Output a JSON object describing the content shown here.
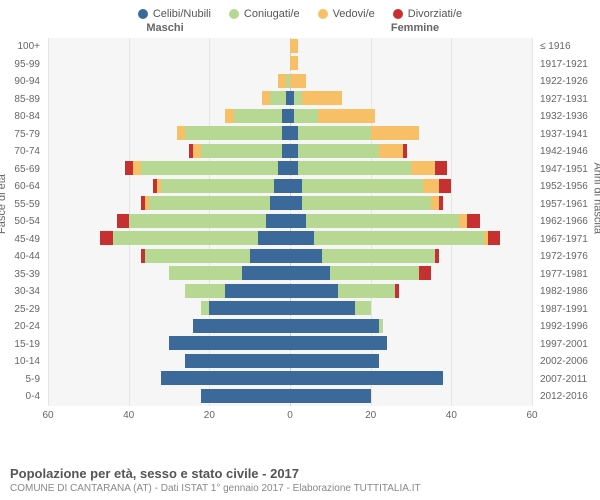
{
  "legend": [
    {
      "label": "Celibi/Nubili",
      "color": "#3b6a9a"
    },
    {
      "label": "Coniugati/e",
      "color": "#b6d893"
    },
    {
      "label": "Vedovi/e",
      "color": "#f7c066"
    },
    {
      "label": "Divorziati/e",
      "color": "#c73030"
    }
  ],
  "gender": {
    "male": "Maschi",
    "female": "Femmine"
  },
  "axes": {
    "left_title": "Fasce di età",
    "right_title": "Anni di nascita",
    "xmax": 60,
    "xticks": [
      60,
      40,
      20,
      0,
      20,
      40,
      60
    ]
  },
  "colors": {
    "celibi": "#3b6a9a",
    "coniugati": "#b6d893",
    "vedovi": "#f7c066",
    "divorziati": "#c73030",
    "plot_bg": "#f6f6f6",
    "grid": "#e5e5e5"
  },
  "rows": [
    {
      "age": "100+",
      "birth": "≤ 1916",
      "m": {
        "c": 0,
        "g": 0,
        "v": 0,
        "d": 0
      },
      "f": {
        "c": 0,
        "g": 0,
        "v": 2,
        "d": 0
      }
    },
    {
      "age": "95-99",
      "birth": "1917-1921",
      "m": {
        "c": 0,
        "g": 0,
        "v": 0,
        "d": 0
      },
      "f": {
        "c": 0,
        "g": 0,
        "v": 2,
        "d": 0
      }
    },
    {
      "age": "90-94",
      "birth": "1922-1926",
      "m": {
        "c": 0,
        "g": 1,
        "v": 2,
        "d": 0
      },
      "f": {
        "c": 0,
        "g": 0,
        "v": 4,
        "d": 0
      }
    },
    {
      "age": "85-89",
      "birth": "1927-1931",
      "m": {
        "c": 1,
        "g": 4,
        "v": 2,
        "d": 0
      },
      "f": {
        "c": 1,
        "g": 2,
        "v": 10,
        "d": 0
      }
    },
    {
      "age": "80-84",
      "birth": "1932-1936",
      "m": {
        "c": 2,
        "g": 12,
        "v": 2,
        "d": 0
      },
      "f": {
        "c": 1,
        "g": 6,
        "v": 14,
        "d": 0
      }
    },
    {
      "age": "75-79",
      "birth": "1937-1941",
      "m": {
        "c": 2,
        "g": 24,
        "v": 2,
        "d": 0
      },
      "f": {
        "c": 2,
        "g": 18,
        "v": 12,
        "d": 0
      }
    },
    {
      "age": "70-74",
      "birth": "1942-1946",
      "m": {
        "c": 2,
        "g": 20,
        "v": 2,
        "d": 1
      },
      "f": {
        "c": 2,
        "g": 20,
        "v": 6,
        "d": 1
      }
    },
    {
      "age": "65-69",
      "birth": "1947-1951",
      "m": {
        "c": 3,
        "g": 34,
        "v": 2,
        "d": 2
      },
      "f": {
        "c": 2,
        "g": 28,
        "v": 6,
        "d": 3
      }
    },
    {
      "age": "60-64",
      "birth": "1952-1956",
      "m": {
        "c": 4,
        "g": 28,
        "v": 1,
        "d": 1
      },
      "f": {
        "c": 3,
        "g": 30,
        "v": 4,
        "d": 3
      }
    },
    {
      "age": "55-59",
      "birth": "1957-1961",
      "m": {
        "c": 5,
        "g": 30,
        "v": 1,
        "d": 1
      },
      "f": {
        "c": 3,
        "g": 32,
        "v": 2,
        "d": 1
      }
    },
    {
      "age": "50-54",
      "birth": "1962-1966",
      "m": {
        "c": 6,
        "g": 34,
        "v": 0,
        "d": 3
      },
      "f": {
        "c": 4,
        "g": 38,
        "v": 2,
        "d": 3
      }
    },
    {
      "age": "45-49",
      "birth": "1967-1971",
      "m": {
        "c": 8,
        "g": 36,
        "v": 0,
        "d": 3
      },
      "f": {
        "c": 6,
        "g": 42,
        "v": 1,
        "d": 3
      }
    },
    {
      "age": "40-44",
      "birth": "1972-1976",
      "m": {
        "c": 10,
        "g": 26,
        "v": 0,
        "d": 1
      },
      "f": {
        "c": 8,
        "g": 28,
        "v": 0,
        "d": 1
      }
    },
    {
      "age": "35-39",
      "birth": "1977-1981",
      "m": {
        "c": 12,
        "g": 18,
        "v": 0,
        "d": 0
      },
      "f": {
        "c": 10,
        "g": 22,
        "v": 0,
        "d": 3
      }
    },
    {
      "age": "30-34",
      "birth": "1982-1986",
      "m": {
        "c": 16,
        "g": 10,
        "v": 0,
        "d": 0
      },
      "f": {
        "c": 12,
        "g": 14,
        "v": 0,
        "d": 1
      }
    },
    {
      "age": "25-29",
      "birth": "1987-1991",
      "m": {
        "c": 20,
        "g": 2,
        "v": 0,
        "d": 0
      },
      "f": {
        "c": 16,
        "g": 4,
        "v": 0,
        "d": 0
      }
    },
    {
      "age": "20-24",
      "birth": "1992-1996",
      "m": {
        "c": 24,
        "g": 0,
        "v": 0,
        "d": 0
      },
      "f": {
        "c": 22,
        "g": 1,
        "v": 0,
        "d": 0
      }
    },
    {
      "age": "15-19",
      "birth": "1997-2001",
      "m": {
        "c": 30,
        "g": 0,
        "v": 0,
        "d": 0
      },
      "f": {
        "c": 24,
        "g": 0,
        "v": 0,
        "d": 0
      }
    },
    {
      "age": "10-14",
      "birth": "2002-2006",
      "m": {
        "c": 26,
        "g": 0,
        "v": 0,
        "d": 0
      },
      "f": {
        "c": 22,
        "g": 0,
        "v": 0,
        "d": 0
      }
    },
    {
      "age": "5-9",
      "birth": "2007-2011",
      "m": {
        "c": 32,
        "g": 0,
        "v": 0,
        "d": 0
      },
      "f": {
        "c": 38,
        "g": 0,
        "v": 0,
        "d": 0
      }
    },
    {
      "age": "0-4",
      "birth": "2012-2016",
      "m": {
        "c": 22,
        "g": 0,
        "v": 0,
        "d": 0
      },
      "f": {
        "c": 20,
        "g": 0,
        "v": 0,
        "d": 0
      }
    }
  ],
  "footer": {
    "title": "Popolazione per età, sesso e stato civile - 2017",
    "subtitle": "COMUNE DI CANTARANA (AT) - Dati ISTAT 1° gennaio 2017 - Elaborazione TUTTITALIA.IT"
  }
}
